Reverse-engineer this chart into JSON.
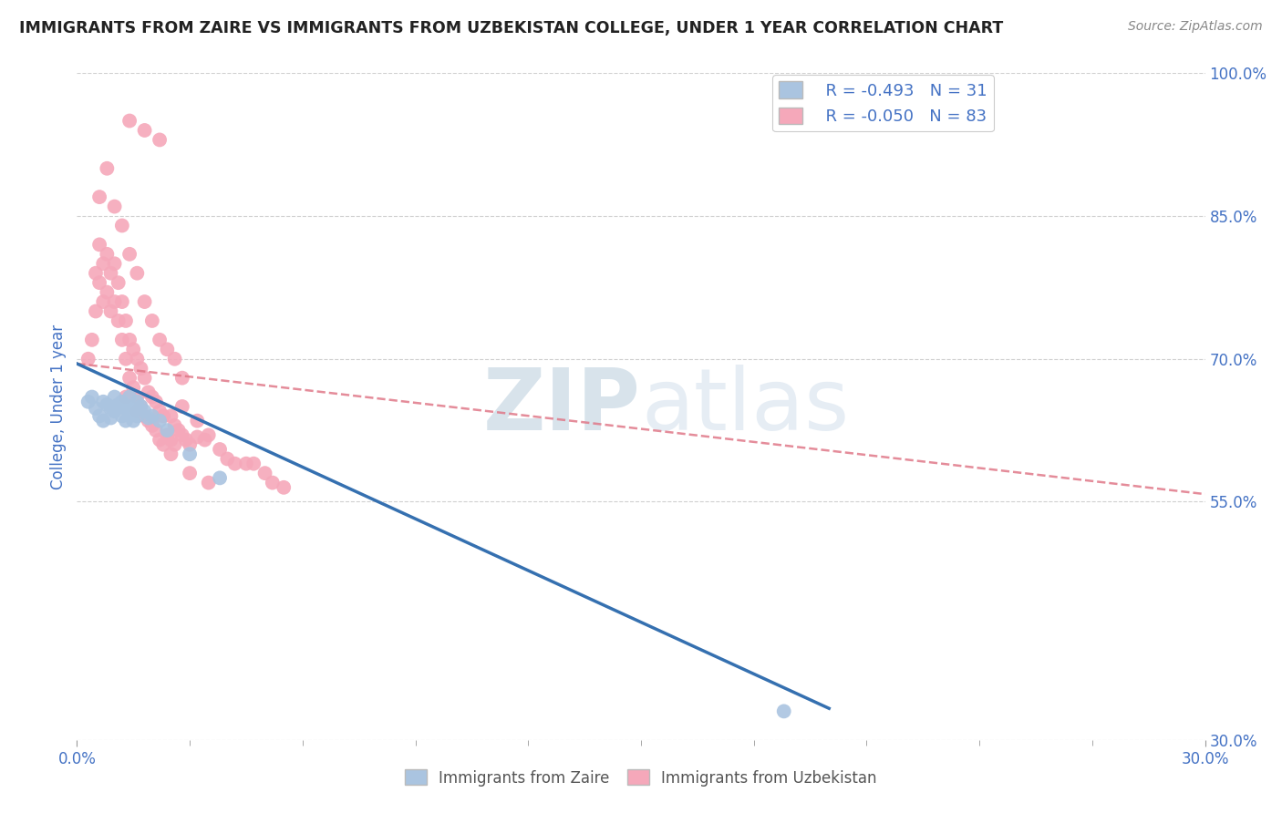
{
  "title": "IMMIGRANTS FROM ZAIRE VS IMMIGRANTS FROM UZBEKISTAN COLLEGE, UNDER 1 YEAR CORRELATION CHART",
  "source": "Source: ZipAtlas.com",
  "ylabel": "College, Under 1 year",
  "xlim": [
    0.0,
    0.3
  ],
  "ylim": [
    0.3,
    1.0
  ],
  "ytick_positions_right": [
    0.3,
    0.55,
    0.7,
    0.85,
    1.0
  ],
  "yticklabels_right": [
    "30.0%",
    "55.0%",
    "70.0%",
    "85.0%",
    "100.0%"
  ],
  "grid_color": "#d0d0d0",
  "background_color": "#ffffff",
  "watermark_zip": "ZIP",
  "watermark_atlas": "atlas",
  "legend_r1": "R = -0.493",
  "legend_n1": "N = 31",
  "legend_r2": "R = -0.050",
  "legend_n2": "N = 83",
  "zaire_color": "#aac4e0",
  "uzbekistan_color": "#f5a8ba",
  "zaire_line_color": "#3570b0",
  "uzbekistan_line_color": "#e07888",
  "title_color": "#222222",
  "tick_label_color": "#4472c4",
  "zaire_scatter_x": [
    0.003,
    0.004,
    0.005,
    0.006,
    0.007,
    0.007,
    0.008,
    0.009,
    0.009,
    0.01,
    0.01,
    0.011,
    0.012,
    0.012,
    0.013,
    0.013,
    0.014,
    0.014,
    0.015,
    0.015,
    0.016,
    0.016,
    0.017,
    0.018,
    0.019,
    0.02,
    0.022,
    0.024,
    0.03,
    0.038,
    0.188
  ],
  "zaire_scatter_y": [
    0.655,
    0.66,
    0.648,
    0.64,
    0.655,
    0.635,
    0.652,
    0.648,
    0.638,
    0.66,
    0.645,
    0.652,
    0.64,
    0.655,
    0.648,
    0.635,
    0.65,
    0.66,
    0.645,
    0.635,
    0.655,
    0.64,
    0.65,
    0.645,
    0.638,
    0.64,
    0.635,
    0.625,
    0.6,
    0.575,
    0.33
  ],
  "uzbekistan_scatter_x": [
    0.003,
    0.004,
    0.005,
    0.005,
    0.006,
    0.006,
    0.007,
    0.007,
    0.008,
    0.008,
    0.009,
    0.009,
    0.01,
    0.01,
    0.011,
    0.011,
    0.012,
    0.012,
    0.013,
    0.013,
    0.014,
    0.014,
    0.015,
    0.015,
    0.016,
    0.016,
    0.017,
    0.017,
    0.018,
    0.018,
    0.019,
    0.019,
    0.02,
    0.02,
    0.021,
    0.021,
    0.022,
    0.022,
    0.023,
    0.023,
    0.024,
    0.025,
    0.025,
    0.026,
    0.026,
    0.027,
    0.028,
    0.029,
    0.03,
    0.032,
    0.034,
    0.035,
    0.038,
    0.04,
    0.042,
    0.045,
    0.047,
    0.05,
    0.052,
    0.055,
    0.006,
    0.008,
    0.01,
    0.012,
    0.014,
    0.016,
    0.018,
    0.02,
    0.022,
    0.024,
    0.026,
    0.028,
    0.014,
    0.018,
    0.022,
    0.013,
    0.016,
    0.02,
    0.025,
    0.03,
    0.035,
    0.028,
    0.032
  ],
  "uzbekistan_scatter_y": [
    0.7,
    0.72,
    0.75,
    0.79,
    0.78,
    0.82,
    0.76,
    0.8,
    0.77,
    0.81,
    0.75,
    0.79,
    0.76,
    0.8,
    0.74,
    0.78,
    0.72,
    0.76,
    0.7,
    0.74,
    0.68,
    0.72,
    0.67,
    0.71,
    0.66,
    0.7,
    0.65,
    0.69,
    0.64,
    0.68,
    0.635,
    0.665,
    0.63,
    0.66,
    0.625,
    0.655,
    0.615,
    0.645,
    0.61,
    0.64,
    0.62,
    0.615,
    0.64,
    0.61,
    0.63,
    0.625,
    0.62,
    0.615,
    0.61,
    0.618,
    0.615,
    0.62,
    0.605,
    0.595,
    0.59,
    0.59,
    0.59,
    0.58,
    0.57,
    0.565,
    0.87,
    0.9,
    0.86,
    0.84,
    0.81,
    0.79,
    0.76,
    0.74,
    0.72,
    0.71,
    0.7,
    0.68,
    0.95,
    0.94,
    0.93,
    0.66,
    0.645,
    0.635,
    0.6,
    0.58,
    0.57,
    0.65,
    0.635
  ],
  "zaire_trendline_x": [
    0.0,
    0.2
  ],
  "zaire_trendline_y": [
    0.695,
    0.333
  ],
  "uzbekistan_trendline_x": [
    0.0,
    0.3
  ],
  "uzbekistan_trendline_y": [
    0.695,
    0.558
  ]
}
